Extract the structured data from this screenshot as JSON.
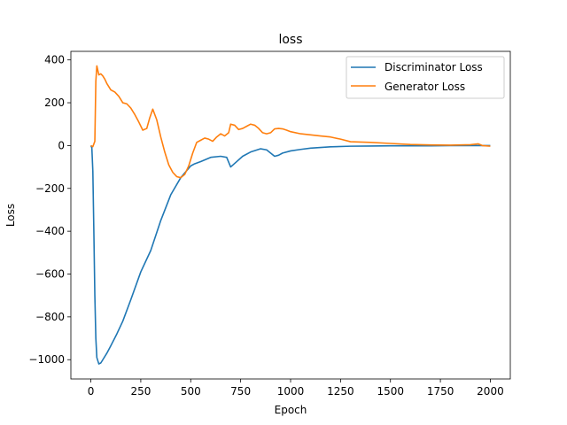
{
  "chart_data": {
    "type": "line",
    "title": "loss",
    "xlabel": "Epoch",
    "ylabel": "Loss",
    "xlim": [
      -100,
      2100
    ],
    "ylim": [
      -1090,
      440
    ],
    "xticks": [
      0,
      250,
      500,
      750,
      1000,
      1250,
      1500,
      1750,
      2000
    ],
    "yticks": [
      -1000,
      -800,
      -600,
      -400,
      -200,
      0,
      200,
      400
    ],
    "tick_labels_x": [
      "0",
      "250",
      "500",
      "750",
      "1000",
      "1250",
      "1500",
      "1750",
      "2000"
    ],
    "tick_labels_y": [
      "−1000",
      "−800",
      "−600",
      "−400",
      "−200",
      "0",
      "200",
      "400"
    ],
    "grid": false,
    "legend": "top-right",
    "series": [
      {
        "name": "Discriminator Loss",
        "color": "#1f77b4",
        "x": [
          0,
          5,
          10,
          15,
          20,
          25,
          30,
          40,
          50,
          60,
          80,
          100,
          130,
          160,
          200,
          250,
          300,
          350,
          400,
          450,
          500,
          520,
          550,
          600,
          650,
          680,
          700,
          730,
          760,
          800,
          850,
          880,
          900,
          920,
          940,
          960,
          1000,
          1050,
          1100,
          1200,
          1300,
          1400,
          1500,
          1600,
          1700,
          1800,
          1900,
          2000
        ],
        "y": [
          0,
          -10,
          -120,
          -400,
          -700,
          -900,
          -990,
          -1020,
          -1015,
          -1000,
          -970,
          -935,
          -880,
          -820,
          -720,
          -590,
          -490,
          -350,
          -230,
          -150,
          -95,
          -85,
          -75,
          -55,
          -50,
          -55,
          -100,
          -75,
          -50,
          -30,
          -15,
          -20,
          -35,
          -50,
          -45,
          -35,
          -25,
          -18,
          -12,
          -6,
          -3,
          -2,
          -1,
          -1,
          -1,
          0,
          0,
          0
        ]
      },
      {
        "name": "Generator Loss",
        "color": "#ff7f0e",
        "x": [
          0,
          10,
          20,
          25,
          30,
          40,
          50,
          60,
          70,
          80,
          100,
          120,
          140,
          160,
          180,
          200,
          220,
          240,
          260,
          280,
          295,
          310,
          330,
          350,
          370,
          390,
          410,
          430,
          450,
          470,
          490,
          510,
          530,
          550,
          570,
          590,
          610,
          630,
          650,
          670,
          690,
          700,
          720,
          740,
          760,
          780,
          800,
          820,
          840,
          860,
          880,
          900,
          920,
          940,
          960,
          980,
          1000,
          1050,
          1100,
          1150,
          1200,
          1250,
          1300,
          1400,
          1500,
          1600,
          1700,
          1800,
          1900,
          1940,
          1960,
          2000
        ],
        "y": [
          0,
          -5,
          20,
          300,
          372,
          330,
          335,
          325,
          310,
          290,
          260,
          250,
          230,
          200,
          195,
          175,
          145,
          110,
          72,
          80,
          130,
          170,
          120,
          40,
          -30,
          -90,
          -125,
          -145,
          -150,
          -135,
          -95,
          -35,
          15,
          25,
          35,
          30,
          20,
          40,
          55,
          45,
          60,
          100,
          95,
          75,
          80,
          90,
          100,
          95,
          80,
          60,
          55,
          60,
          78,
          80,
          78,
          72,
          65,
          55,
          50,
          45,
          40,
          30,
          18,
          15,
          10,
          5,
          3,
          2,
          4,
          8,
          0,
          -3
        ]
      }
    ]
  }
}
